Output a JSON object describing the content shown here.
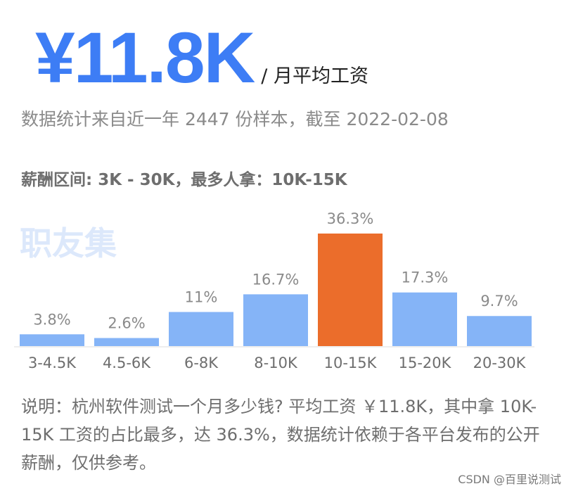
{
  "headline": {
    "amount": "¥11.8K",
    "unit": "/ 月平均工资"
  },
  "stats_line": "数据统计来自近一年 2447 份样本，截至 2022-02-08",
  "range_line": "薪酬区间: 3K - 30K，最多人拿：10K-15K",
  "watermark": "职友集",
  "chart_data": {
    "type": "bar",
    "categories": [
      "3-4.5K",
      "4.5-6K",
      "6-8K",
      "8-10K",
      "10-15K",
      "15-20K",
      "20-30K"
    ],
    "values": [
      3.8,
      2.6,
      11,
      16.7,
      36.3,
      17.3,
      9.7
    ],
    "labels": [
      "3.8%",
      "2.6%",
      "11%",
      "16.7%",
      "36.3%",
      "17.3%",
      "9.7%"
    ],
    "highlight_index": 4,
    "colors": {
      "bar": "#85b4f7",
      "highlight": "#eb6d2b",
      "axis": "#eeeeee",
      "label": "#8a8a8a"
    }
  },
  "note": "说明：杭州软件测试一个月多少钱? 平均工资 ￥11.8K，其中拿 10K-15K 工资的占比最多，达 36.3%，数据统计依赖于各平台发布的公开薪酬，仅供参考。",
  "credit": "CSDN @百里说测试"
}
